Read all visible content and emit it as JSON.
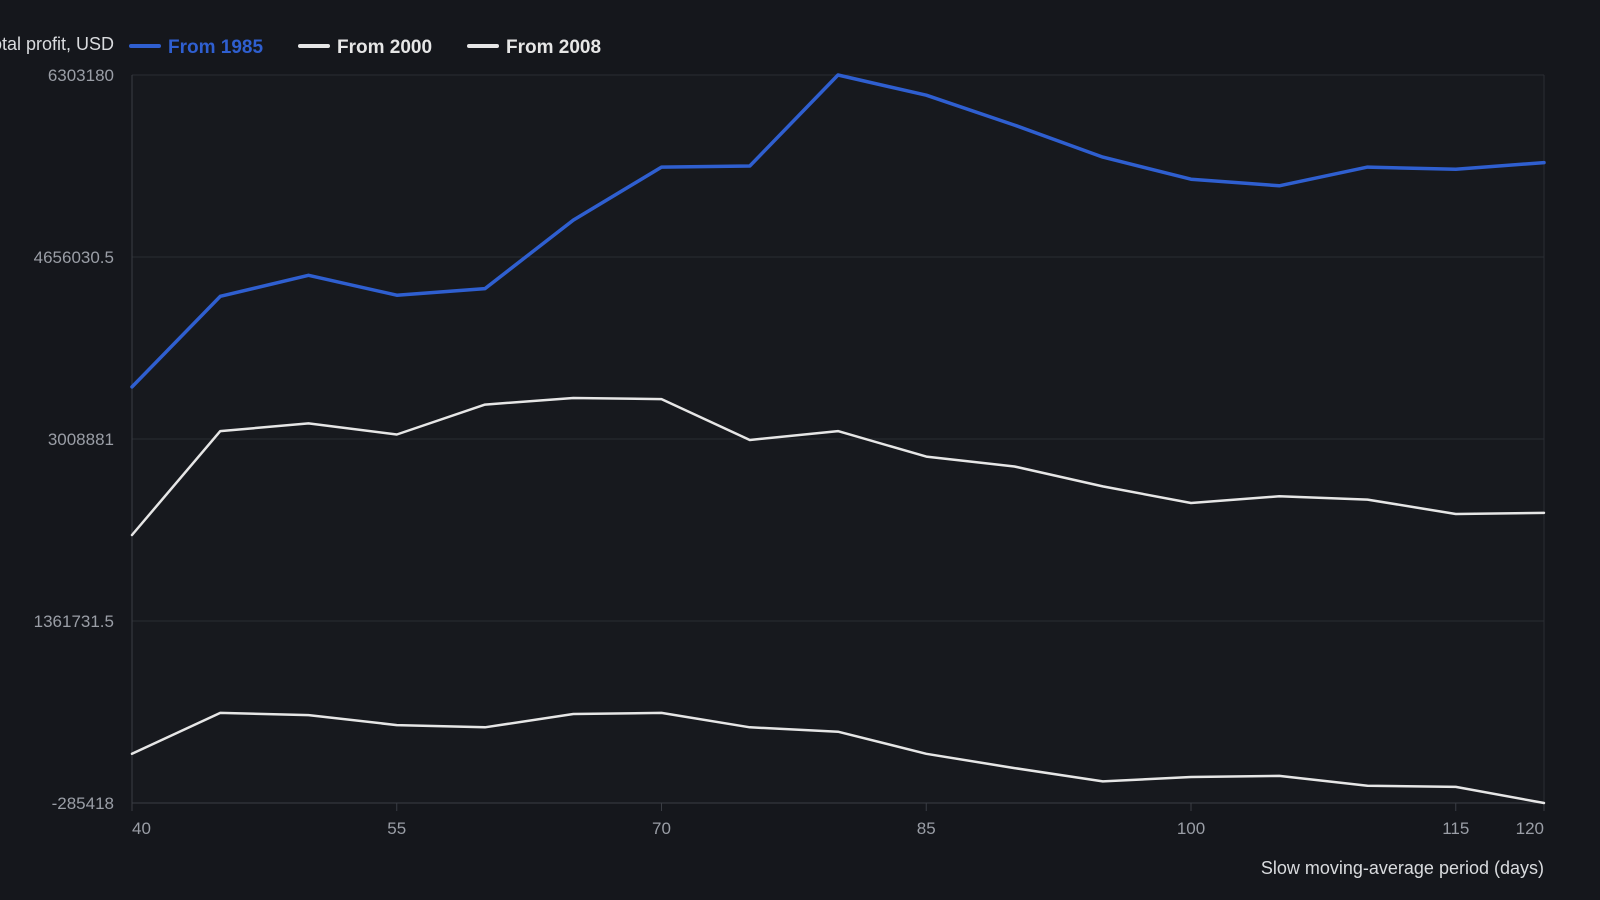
{
  "chart_data": {
    "type": "line",
    "title": "",
    "xlabel": "Slow moving-average period (days)",
    "ylabel": "Total profit, USD",
    "x": [
      40,
      45,
      50,
      55,
      60,
      65,
      70,
      75,
      80,
      85,
      90,
      95,
      100,
      105,
      110,
      115,
      120
    ],
    "xticks": [
      "40",
      "55",
      "70",
      "85",
      "100",
      "115",
      "120"
    ],
    "xtick_values": [
      40,
      55,
      70,
      85,
      100,
      115,
      120
    ],
    "yticks": [
      "6303180",
      "4656030.5",
      "3008881",
      "1361731.5",
      "-285418"
    ],
    "ytick_values": [
      6303180,
      4656030.5,
      3008881,
      1361731.5,
      -285418
    ],
    "xlim": [
      40,
      120
    ],
    "ylim": [
      -285418,
      6303180
    ],
    "grid": true,
    "legend_position": "top-left",
    "series": [
      {
        "name": "From 1985",
        "color": "#2f5fd0",
        "values": [
          3480000,
          4300000,
          4490000,
          4310000,
          4370000,
          4990000,
          5470000,
          5480000,
          6303180,
          6120000,
          5850000,
          5560000,
          5360000,
          5300000,
          5470000,
          5450000,
          5510000
        ]
      },
      {
        "name": "From 2000",
        "color": "#e6e6e6",
        "values": [
          2140000,
          3080000,
          3150000,
          3050000,
          3320000,
          3380000,
          3370000,
          3000000,
          3080000,
          2850000,
          2760000,
          2580000,
          2430000,
          2490000,
          2460000,
          2330000,
          2340000
        ]
      },
      {
        "name": "From 2008",
        "color": "#e6e6e6",
        "values": [
          160000,
          530000,
          510000,
          420000,
          400000,
          520000,
          530000,
          400000,
          360000,
          160000,
          30000,
          -90000,
          -50000,
          -40000,
          -130000,
          -140000,
          -285418
        ]
      }
    ]
  }
}
